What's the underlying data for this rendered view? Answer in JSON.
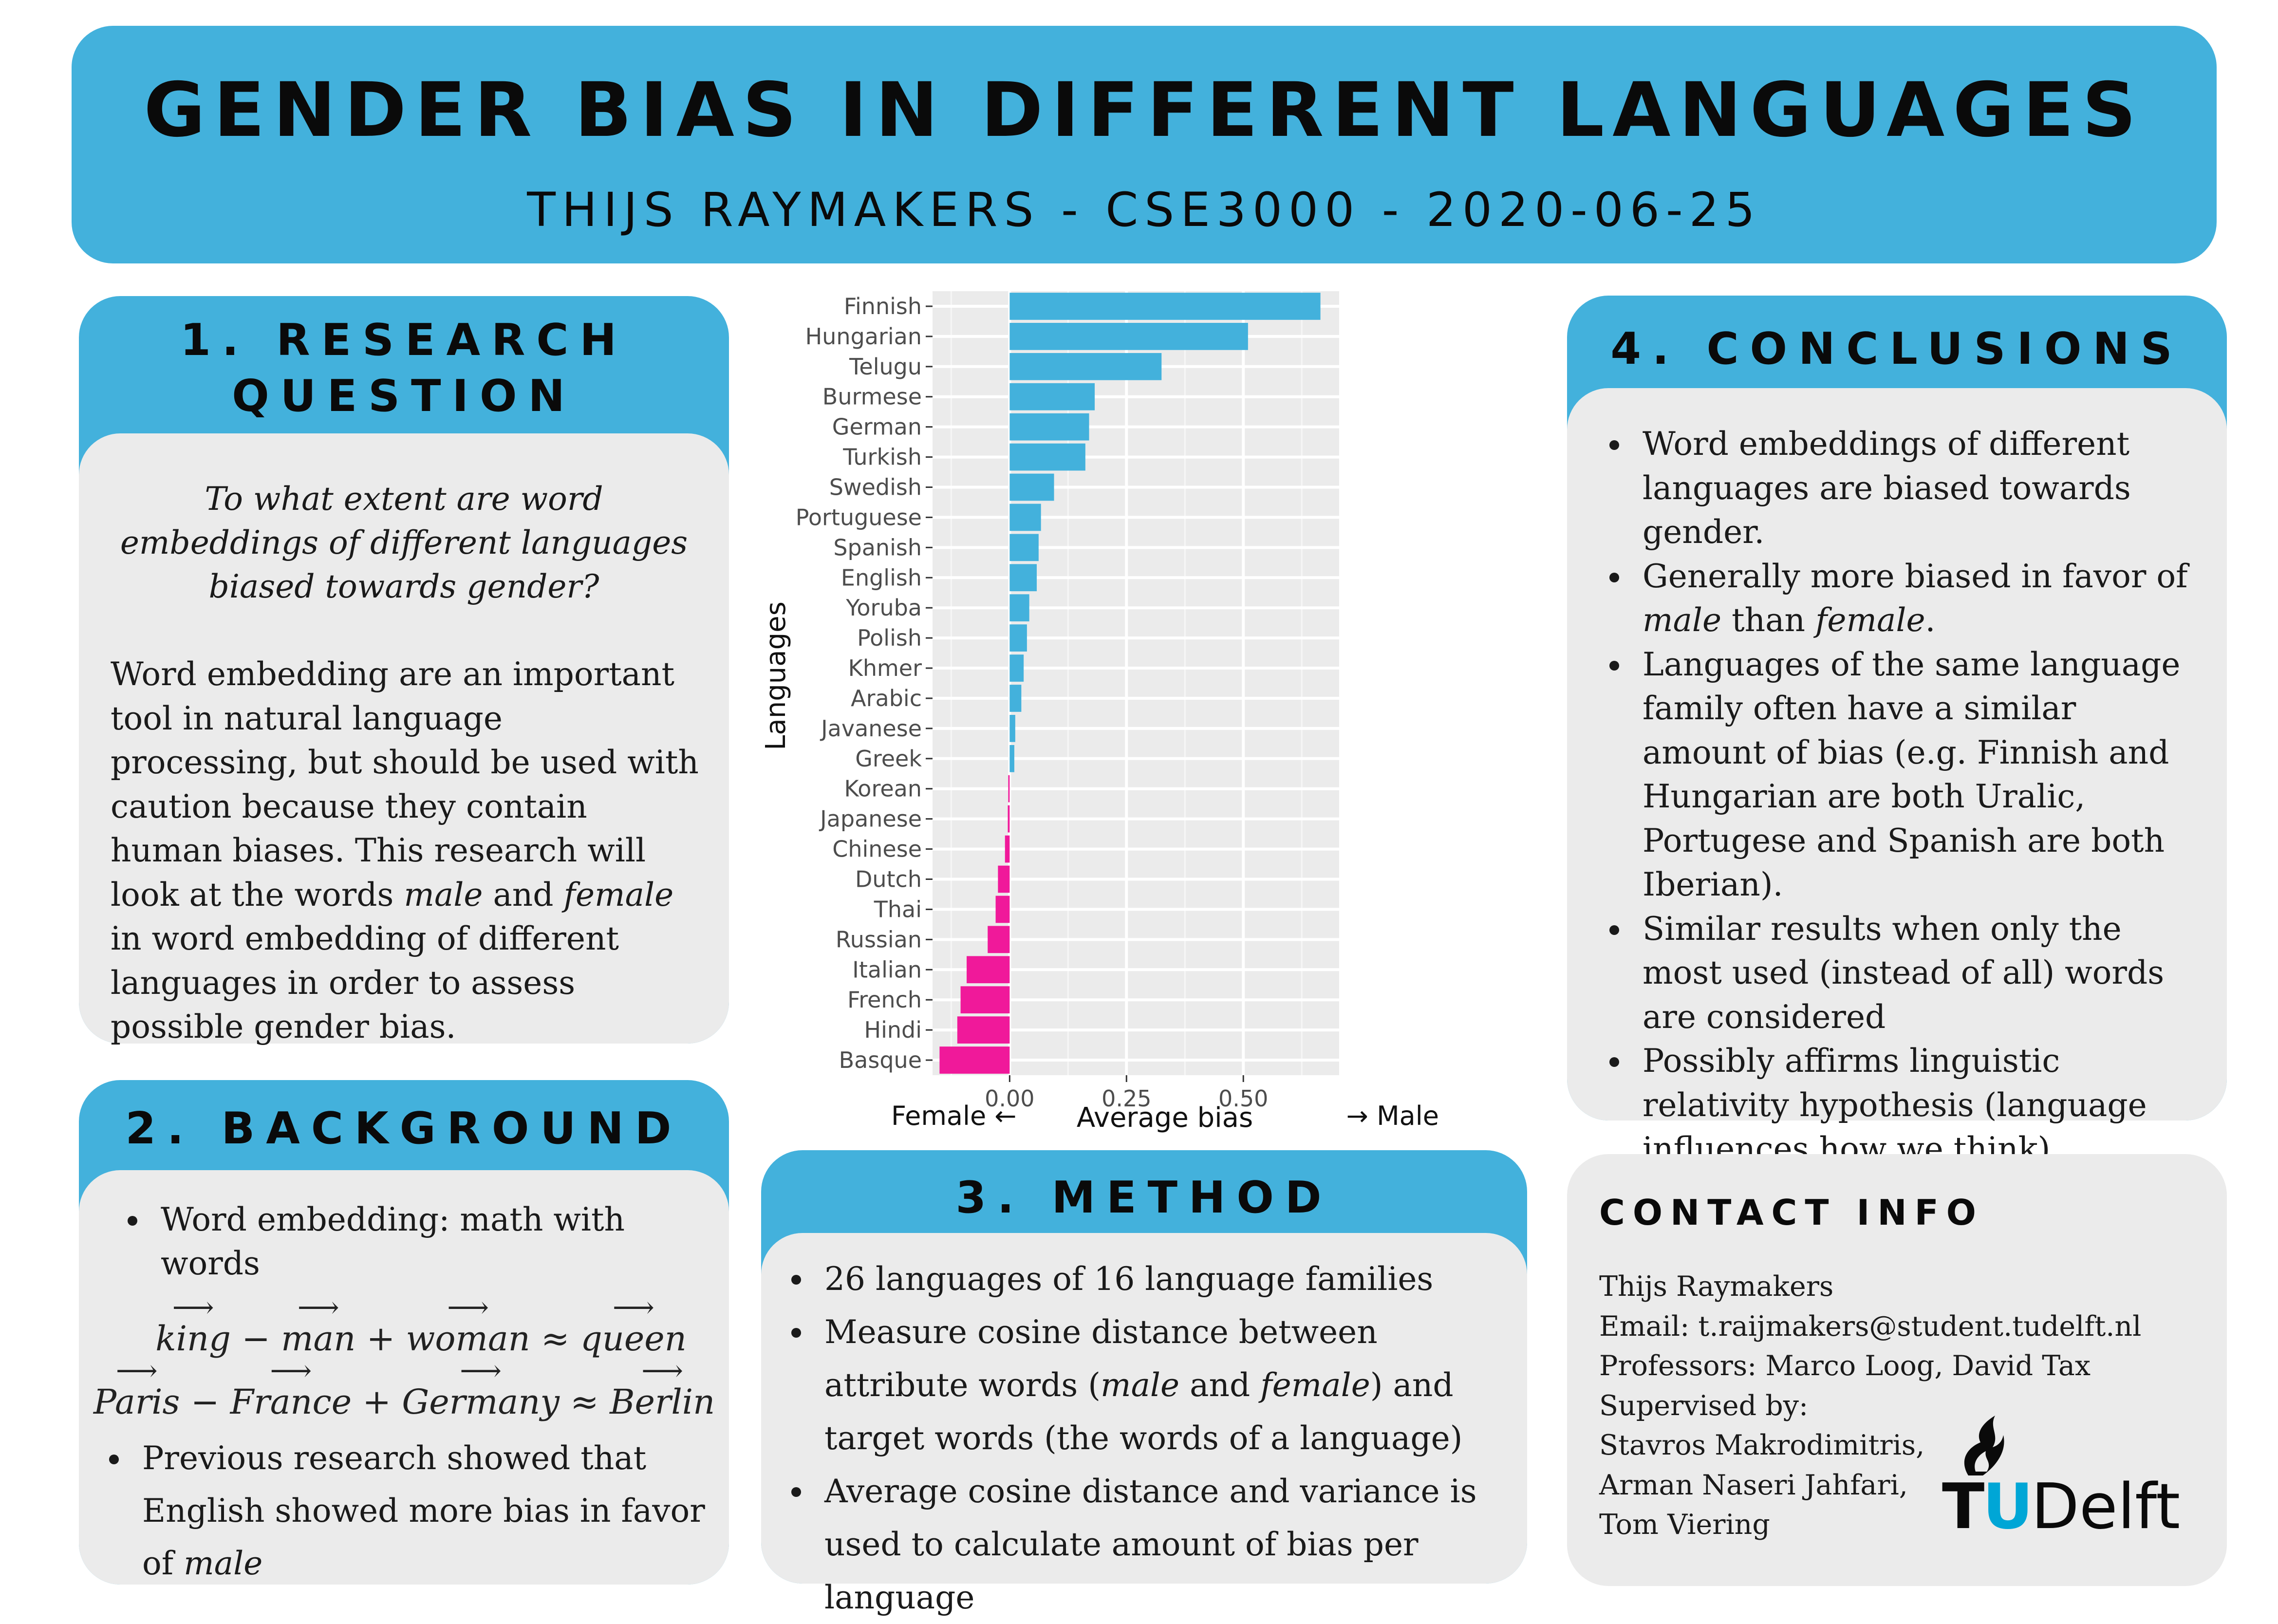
{
  "header": {
    "title": "GENDER BIAS IN DIFFERENT LANGUAGES",
    "subtitle": "THIJS RAYMAKERS - CSE3000 - 2020-06-25"
  },
  "research_question": {
    "heading_line1": "1. RESEARCH",
    "heading_line2": "QUESTION",
    "question": "To what extent are word embeddings of different languages biased towards gender?",
    "body": [
      {
        "t": "Word embedding are an important tool in natural language processing, but should be used with caution because they contain human biases. This research will look at the words ",
        "i": false
      },
      {
        "t": "male",
        "i": true
      },
      {
        "t": " and ",
        "i": false
      },
      {
        "t": "female",
        "i": true
      },
      {
        "t": " in word embedding  of different languages in order to assess possible gender bias.",
        "i": false
      }
    ]
  },
  "background": {
    "heading": "2. BACKGROUND",
    "bullet1": "Word embedding: math with words",
    "eq1": {
      "a": "king",
      "op1": "−",
      "b": "man",
      "op2": "+",
      "c": "woman",
      "op3": "≈",
      "d": "queen"
    },
    "eq2": {
      "a": "Paris",
      "op1": "−",
      "b": "France",
      "op2": "+",
      "c": "Germany",
      "op3": "≈",
      "d": "Berlin"
    },
    "bullet2_text": "Previous research showed that English showed more bias in favor of ",
    "bullet2_italic": "male"
  },
  "method": {
    "heading": "3. METHOD",
    "item1": "26 languages of 16 language families",
    "item2": [
      {
        "t": "Measure cosine distance between attribute words (",
        "i": false
      },
      {
        "t": "male",
        "i": true
      },
      {
        "t": " and ",
        "i": false
      },
      {
        "t": "female",
        "i": true
      },
      {
        "t": ") and target words (the words of a language)",
        "i": false
      }
    ],
    "item3": "Average cosine distance and variance is used to calculate amount of bias per language"
  },
  "conclusions": {
    "heading": "4. CONCLUSIONS",
    "items": [
      [
        {
          "t": "Word embeddings of different languages are biased towards gender.",
          "i": false
        }
      ],
      [
        {
          "t": "Generally more biased in favor of ",
          "i": false
        },
        {
          "t": "male",
          "i": true
        },
        {
          "t": " than ",
          "i": false
        },
        {
          "t": "female",
          "i": true
        },
        {
          "t": ".",
          "i": false
        }
      ],
      [
        {
          "t": "Languages of the same language family often have a similar amount of bias (e.g. Finnish and Hungarian are both Uralic, Portugese and Spanish are both Iberian).",
          "i": false
        }
      ],
      [
        {
          "t": "Similar results when only the most used (instead of all) words are considered",
          "i": false
        }
      ],
      [
        {
          "t": "Possibly affirms linguistic relativity hypothesis (language influences how we think)",
          "i": false
        }
      ]
    ]
  },
  "contact": {
    "heading": "CONTACT INFO",
    "lines": [
      "Thijs Raymakers",
      "Email: t.raijmakers@student.tudelft.nl",
      "Professors: Marco Loog, David Tax",
      "Supervised by:",
      "Stavros Makrodimitris,",
      "Arman Naseri Jahfari,",
      "Tom Viering"
    ],
    "logo_tu": "TU",
    "logo_delft": "Delft"
  },
  "chart_data": {
    "type": "bar",
    "orientation": "horizontal",
    "categories": [
      "Finnish",
      "Hungarian",
      "Telugu",
      "Burmese",
      "German",
      "Turkish",
      "Swedish",
      "Portuguese",
      "Spanish",
      "English",
      "Yoruba",
      "Polish",
      "Khmer",
      "Arabic",
      "Javanese",
      "Greek",
      "Korean",
      "Japanese",
      "Chinese",
      "Dutch",
      "Thai",
      "Russian",
      "Italian",
      "French",
      "Hindi",
      "Basque"
    ],
    "values": [
      0.665,
      0.51,
      0.325,
      0.182,
      0.17,
      0.162,
      0.095,
      0.067,
      0.062,
      0.058,
      0.042,
      0.037,
      0.03,
      0.025,
      0.012,
      0.01,
      -0.003,
      -0.004,
      -0.01,
      -0.025,
      -0.03,
      -0.047,
      -0.092,
      -0.105,
      -0.112,
      -0.15
    ],
    "positive_color": "#43b1dc",
    "negative_color": "#f0199a",
    "xlabel": "Average bias",
    "xlabel_left": "Female ←",
    "xlabel_right": "→ Male",
    "ylabel": "Languages",
    "xlim": [
      -0.165,
      0.705
    ],
    "xticks": [
      0.0,
      0.25,
      0.5
    ],
    "xtick_labels": [
      "0.00",
      "0.25",
      "0.50"
    ],
    "grid": true
  }
}
